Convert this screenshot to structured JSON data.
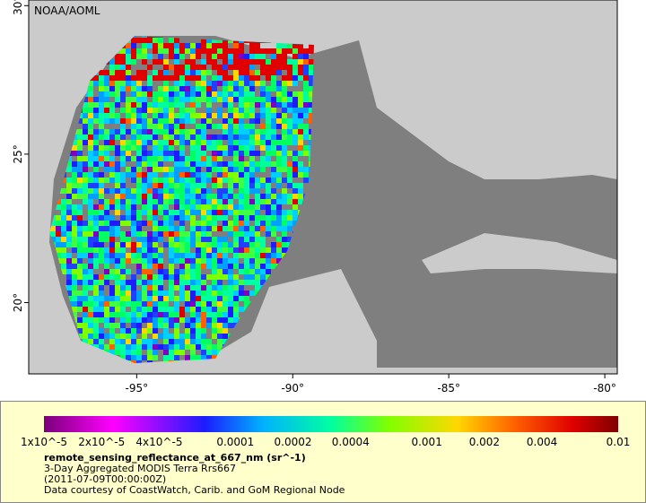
{
  "map": {
    "credit": "NOAA/AOML",
    "lon_ticks": [
      {
        "value": -95,
        "label": "-95°"
      },
      {
        "value": -90,
        "label": "-90°"
      },
      {
        "value": -85,
        "label": "-85°"
      },
      {
        "value": -80,
        "label": "-80°"
      }
    ],
    "lat_ticks": [
      {
        "value": 30,
        "label": "30°"
      },
      {
        "value": 25,
        "label": "25°"
      },
      {
        "value": 20,
        "label": "20°"
      }
    ],
    "lon_range": [
      -98.46,
      -79.6
    ],
    "lat_range": [
      30.19,
      17.6
    ]
  },
  "legend": {
    "scale": "log",
    "range": [
      1e-05,
      0.01
    ],
    "ticks": [
      {
        "value": 1e-05,
        "label": "1x10^-5"
      },
      {
        "value": 2e-05,
        "label": "2x10^-5"
      },
      {
        "value": 4e-05,
        "label": "4x10^-5"
      },
      {
        "value": 0.0001,
        "label": "0.0001"
      },
      {
        "value": 0.0002,
        "label": "0.0002"
      },
      {
        "value": 0.0004,
        "label": "0.0004"
      },
      {
        "value": 0.001,
        "label": "0.001"
      },
      {
        "value": 0.002,
        "label": "0.002"
      },
      {
        "value": 0.004,
        "label": "0.004"
      },
      {
        "value": 0.01,
        "label": "0.01"
      }
    ],
    "title": "remote_sensing_reflectance_at_667_nm (sr^-1)",
    "lines": [
      "3-Day Aggregated MODIS Terra Rrs667",
      "(2011-07-09T00:00:00Z)",
      "Data courtesy of CoastWatch, Carib. and GoM Regional Node"
    ]
  }
}
